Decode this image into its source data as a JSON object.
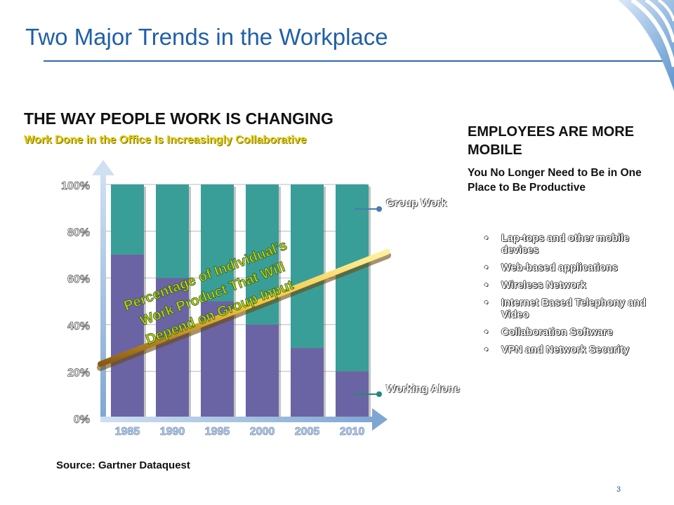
{
  "slide": {
    "title": "Two Major Trends in the Workplace",
    "page_number": "3"
  },
  "left": {
    "heading": "THE WAY PEOPLE WORK IS CHANGING",
    "subheading": "Work Done in the Office Is Increasingly Collaborative",
    "source": "Source: Gartner Dataquest"
  },
  "right": {
    "heading": "EMPLOYEES ARE MORE MOBILE",
    "subheading": "You No Longer Need to Be in One Place to Be Productive",
    "bullets": [
      "Lap-tops and other mobile devices",
      "Web-based applications",
      "Wireless Network",
      "Internet Based Telephony and Video",
      "Collaboration Software",
      "VPN and Network Security"
    ]
  },
  "colors": {
    "working_alone": "#6a64a4",
    "group_work": "#3a9e98",
    "trend_line": "#f2c230",
    "axis": "#9fb8d8",
    "title": "#1f5fa8"
  },
  "chart_data": {
    "type": "bar",
    "stacked": true,
    "categories": [
      "1985",
      "1990",
      "1995",
      "2000",
      "2005",
      "2010"
    ],
    "series": [
      {
        "name": "Working Alone",
        "values": [
          70,
          60,
          50,
          40,
          30,
          20
        ]
      },
      {
        "name": "Group Work",
        "values": [
          30,
          40,
          50,
          60,
          70,
          80
        ]
      }
    ],
    "ylim": [
      0,
      100
    ],
    "y_ticks": [
      "0%",
      "20%",
      "40%",
      "60%",
      "80%",
      "100%"
    ],
    "grid": true,
    "annotation": "Percentage of Individual’s Work Product That Will Depend on Group Input"
  }
}
